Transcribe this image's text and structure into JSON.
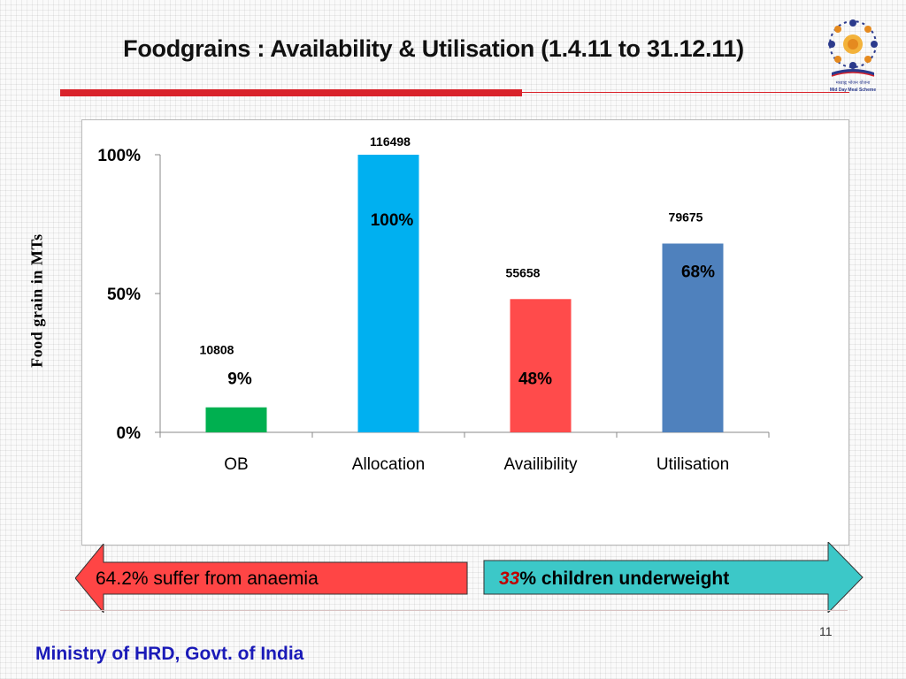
{
  "slide": {
    "title": "Foodgrains : Availability & Utilisation (1.4.11 to 31.12.11)",
    "page_number": "11",
    "footer": "Ministry of HRD, Govt. of India",
    "logo_text_line1": "मध्याह्न भोजन योजना",
    "logo_text_line2": "Mid Day Meal Scheme"
  },
  "callouts": {
    "left_text": "64.2% suffer from anaemia",
    "right_number": "33",
    "right_text": "% children underweight",
    "left_color": "#ff4545",
    "right_color": "#3cc8c8"
  },
  "chart_data": {
    "type": "bar",
    "title": "",
    "ylabel": "Food grain in MTs",
    "xlabel": "",
    "ylim": [
      0,
      100
    ],
    "yticks": [
      "0%",
      "50%",
      "100%"
    ],
    "grid": false,
    "legend": "none",
    "categories": [
      "OB",
      "Allocation",
      "Availibility",
      "Utilisation"
    ],
    "values": [
      9,
      100,
      48,
      68
    ],
    "value_labels": [
      "9%",
      "100%",
      "48%",
      "68%"
    ],
    "quantity_labels": [
      "10808",
      "116498",
      "55658",
      "79675"
    ],
    "colors": [
      "#00b050",
      "#00b0f0",
      "#ff4b4b",
      "#4f81bd"
    ]
  }
}
